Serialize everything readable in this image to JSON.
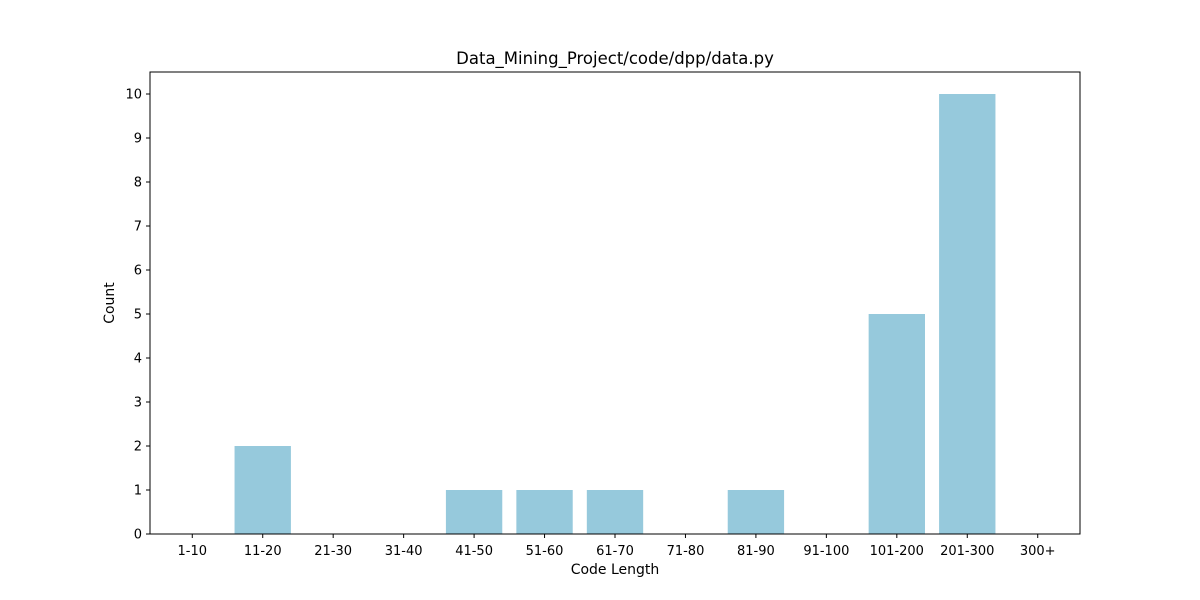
{
  "chart_data": {
    "type": "bar",
    "title": "Data_Mining_Project/code/dpp/data.py",
    "xlabel": "Code Length",
    "ylabel": "Count",
    "categories": [
      "1-10",
      "11-20",
      "21-30",
      "31-40",
      "41-50",
      "51-60",
      "61-70",
      "71-80",
      "81-90",
      "91-100",
      "101-200",
      "201-300",
      "300+"
    ],
    "values": [
      0,
      2,
      0,
      0,
      1,
      1,
      1,
      0,
      1,
      0,
      5,
      10,
      0
    ],
    "yticks": [
      0,
      1,
      2,
      3,
      4,
      5,
      6,
      7,
      8,
      9,
      10
    ],
    "ylim": [
      0,
      10.5
    ],
    "grid": false,
    "bar_color": "#96c9dc"
  }
}
